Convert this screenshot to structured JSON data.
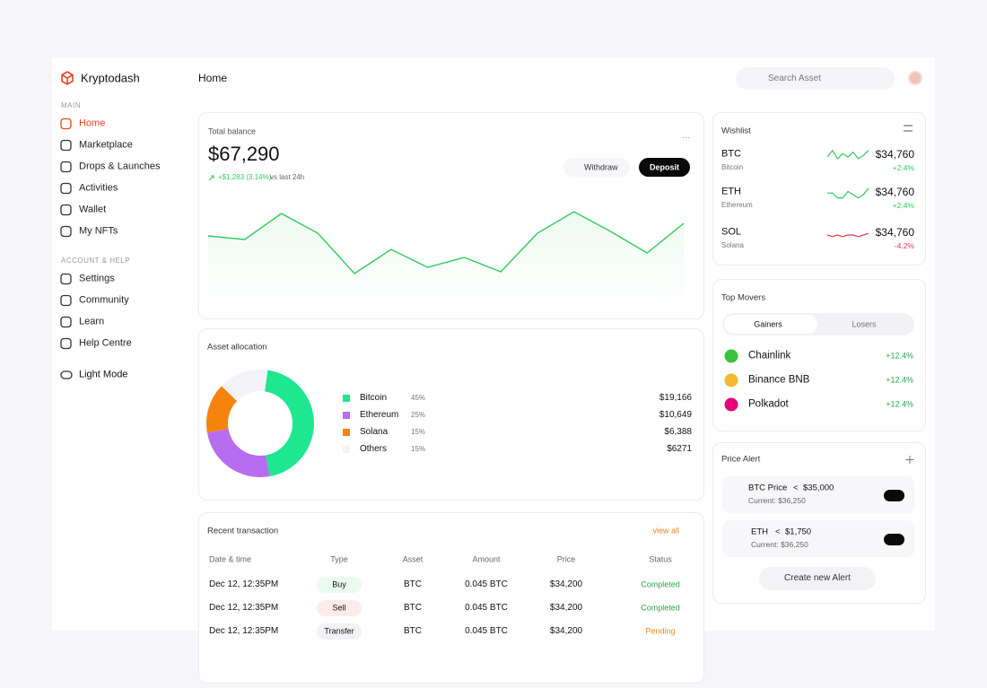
{
  "sidebar": {
    "brand": "Kryptodash",
    "sections": [
      {
        "label": "MAIN",
        "items": [
          "Home",
          "Marketplace",
          "Drops & Launches",
          "Activities",
          "Wallet",
          "My NFTs"
        ]
      },
      {
        "label": "ACCOUNT & HELP",
        "items": [
          "Settings",
          "Community",
          "Learn",
          "Help Centre"
        ]
      }
    ],
    "theme_toggle": "Light Mode"
  },
  "header": {
    "title": "Home",
    "search_placeholder": "Search Asset"
  },
  "balance": {
    "label": "Total balance",
    "amount": "$67,290",
    "change": "+$1,283 (3.14%)",
    "change_note": "vs last 24h",
    "withdraw": "Withdraw",
    "deposit": "Deposit",
    "chart": {
      "type": "line",
      "values": [
        57,
        53,
        82,
        60,
        15,
        42,
        22,
        33,
        17,
        60,
        84,
        62,
        38,
        71
      ],
      "ylim": [
        0,
        100
      ],
      "color": "#2ecc5a"
    }
  },
  "allocation": {
    "title": "Asset allocation",
    "type": "donut",
    "categories": [
      "Bitcoin",
      "Ethereum",
      "Solana",
      "Others"
    ],
    "values": [
      45,
      25,
      15,
      15
    ],
    "value_labels": [
      "45%",
      "25%",
      "15%",
      "15%"
    ],
    "amounts": [
      "$19,166",
      "$10,649",
      "$6,388",
      "$6271"
    ],
    "colors": [
      "#1ee88f",
      "#b86cf0",
      "#f5840f",
      "#f3f3f7"
    ]
  },
  "transactions": {
    "title": "Recent transaction",
    "link": "view all",
    "columns": [
      "Date & time",
      "Type",
      "Asset",
      "Amount",
      "Price",
      "Status"
    ],
    "rows": [
      [
        "Dec 12, 12:35PM",
        "Buy",
        "BTC",
        "0.045 BTC",
        "$34,200",
        "Completed"
      ],
      [
        "Dec 12, 12:35PM",
        "Sell",
        "BTC",
        "0.045 BTC",
        "$34,200",
        "Completed"
      ],
      [
        "Dec 12, 12:35PM",
        "Transfer",
        "BTC",
        "0.045 BTC",
        "$34,200",
        "Pending"
      ]
    ]
  },
  "wishlist": {
    "title": "Wishlist",
    "items": [
      {
        "symbol": "BTC",
        "name": "Bitcoin",
        "price": "$34,760",
        "change": "+2.4%",
        "color": "#2ecc5a",
        "values": [
          5,
          9,
          4,
          7,
          5,
          8,
          4,
          6,
          9
        ],
        "ylim": [
          0,
          10
        ]
      },
      {
        "symbol": "ETH",
        "name": "Ethereum",
        "price": "$34,760",
        "change": "+2.4%",
        "color": "#2ecc5a",
        "values": [
          6,
          6,
          3,
          3,
          7,
          5,
          3,
          5,
          9
        ],
        "ylim": [
          0,
          10
        ]
      },
      {
        "symbol": "SOL",
        "name": "Solana",
        "price": "$34,760",
        "change": "-4.2%",
        "color": "#e2364b",
        "values": [
          5,
          4,
          5,
          4,
          5,
          5,
          4,
          5,
          6
        ],
        "ylim": [
          0,
          10
        ]
      }
    ]
  },
  "top_movers": {
    "title": "Top Movers",
    "tabs": [
      "Gainers",
      "Losers"
    ],
    "items": [
      {
        "name": "Chainlink",
        "change": "+12.4%",
        "color": "#39c33a"
      },
      {
        "name": "Binance BNB",
        "change": "+12.4%",
        "color": "#f3ba2f"
      },
      {
        "name": "Polkadot",
        "change": "+12.4%",
        "color": "#e6007a"
      }
    ]
  },
  "price_alert": {
    "title": "Price Alert",
    "alerts": [
      {
        "asset": "BTC Price",
        "operator": "<",
        "target": "$35,000",
        "current": "Current: $36,250",
        "enabled": true,
        "color": "#f7931a"
      },
      {
        "asset": "ETH",
        "operator": "<",
        "target": "$1,750",
        "current": "Current: $36,250",
        "enabled": true,
        "color": "#222"
      }
    ],
    "button": "Create new Alert"
  }
}
